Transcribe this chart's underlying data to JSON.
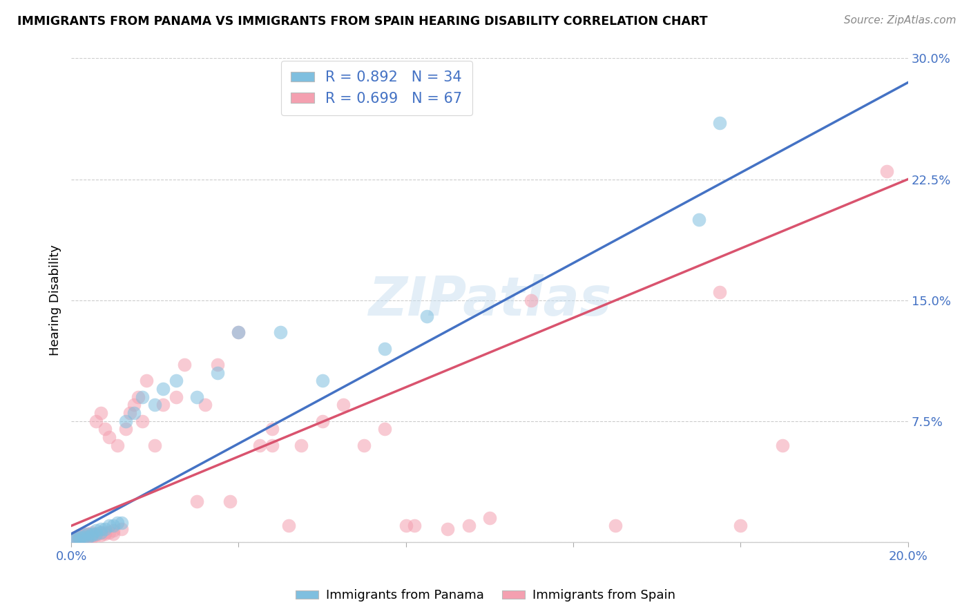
{
  "title": "IMMIGRANTS FROM PANAMA VS IMMIGRANTS FROM SPAIN HEARING DISABILITY CORRELATION CHART",
  "source": "Source: ZipAtlas.com",
  "ylabel": "Hearing Disability",
  "xlim": [
    0.0,
    0.2
  ],
  "ylim": [
    0.0,
    0.3
  ],
  "xticks": [
    0.0,
    0.04,
    0.08,
    0.12,
    0.16,
    0.2
  ],
  "yticks": [
    0.0,
    0.075,
    0.15,
    0.225,
    0.3
  ],
  "ytick_labels": [
    "",
    "7.5%",
    "15.0%",
    "22.5%",
    "30.0%"
  ],
  "xtick_labels": [
    "0.0%",
    "",
    "",
    "",
    "",
    "20.0%"
  ],
  "panama_color": "#7fbfdf",
  "spain_color": "#f4a0b0",
  "panama_line_color": "#4472c4",
  "spain_line_color": "#d9536e",
  "panama_R": 0.892,
  "panama_N": 34,
  "spain_R": 0.699,
  "spain_N": 67,
  "legend_label_panama": "Immigrants from Panama",
  "legend_label_spain": "Immigrants from Spain",
  "watermark": "ZIPatlas",
  "panama_scatter_x": [
    0.001,
    0.001,
    0.002,
    0.002,
    0.003,
    0.003,
    0.004,
    0.004,
    0.005,
    0.005,
    0.006,
    0.006,
    0.007,
    0.007,
    0.008,
    0.009,
    0.01,
    0.011,
    0.012,
    0.013,
    0.015,
    0.017,
    0.02,
    0.022,
    0.025,
    0.03,
    0.035,
    0.04,
    0.05,
    0.06,
    0.075,
    0.085,
    0.15,
    0.155
  ],
  "panama_scatter_y": [
    0.001,
    0.002,
    0.002,
    0.003,
    0.003,
    0.004,
    0.003,
    0.005,
    0.004,
    0.005,
    0.005,
    0.007,
    0.006,
    0.008,
    0.008,
    0.01,
    0.01,
    0.012,
    0.012,
    0.075,
    0.08,
    0.09,
    0.085,
    0.095,
    0.1,
    0.09,
    0.105,
    0.13,
    0.13,
    0.1,
    0.12,
    0.14,
    0.2,
    0.26
  ],
  "spain_scatter_x": [
    0.001,
    0.001,
    0.001,
    0.002,
    0.002,
    0.002,
    0.002,
    0.003,
    0.003,
    0.003,
    0.003,
    0.004,
    0.004,
    0.004,
    0.005,
    0.005,
    0.005,
    0.006,
    0.006,
    0.006,
    0.007,
    0.007,
    0.007,
    0.008,
    0.008,
    0.008,
    0.009,
    0.009,
    0.01,
    0.01,
    0.011,
    0.012,
    0.013,
    0.014,
    0.015,
    0.016,
    0.017,
    0.018,
    0.02,
    0.022,
    0.025,
    0.027,
    0.03,
    0.032,
    0.035,
    0.038,
    0.04,
    0.045,
    0.048,
    0.048,
    0.052,
    0.055,
    0.06,
    0.065,
    0.07,
    0.075,
    0.08,
    0.082,
    0.09,
    0.095,
    0.1,
    0.11,
    0.13,
    0.155,
    0.16,
    0.17,
    0.195
  ],
  "spain_scatter_y": [
    0.001,
    0.002,
    0.003,
    0.001,
    0.002,
    0.003,
    0.004,
    0.002,
    0.003,
    0.004,
    0.005,
    0.002,
    0.003,
    0.005,
    0.003,
    0.004,
    0.006,
    0.004,
    0.005,
    0.075,
    0.004,
    0.006,
    0.08,
    0.005,
    0.006,
    0.07,
    0.006,
    0.065,
    0.005,
    0.007,
    0.06,
    0.008,
    0.07,
    0.08,
    0.085,
    0.09,
    0.075,
    0.1,
    0.06,
    0.085,
    0.09,
    0.11,
    0.025,
    0.085,
    0.11,
    0.025,
    0.13,
    0.06,
    0.06,
    0.07,
    0.01,
    0.06,
    0.075,
    0.085,
    0.06,
    0.07,
    0.01,
    0.01,
    0.008,
    0.01,
    0.015,
    0.15,
    0.01,
    0.155,
    0.01,
    0.06,
    0.23
  ],
  "panama_line_x0": 0.0,
  "panama_line_y0": 0.005,
  "panama_line_x1": 0.2,
  "panama_line_y1": 0.285,
  "spain_line_x0": 0.0,
  "spain_line_y0": 0.01,
  "spain_line_x1": 0.2,
  "spain_line_y1": 0.225
}
